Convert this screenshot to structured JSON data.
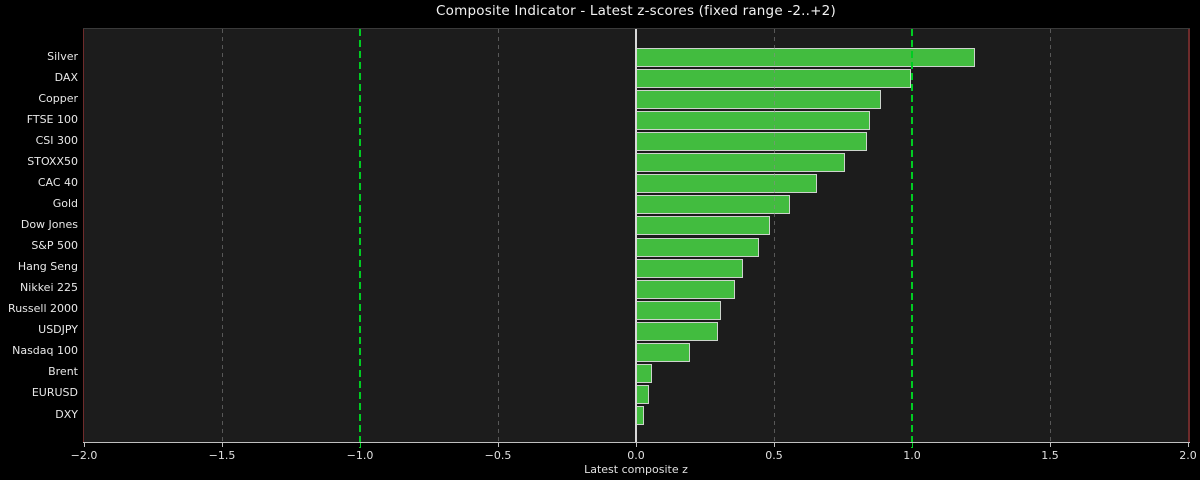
{
  "chart_data": {
    "type": "bar",
    "orientation": "horizontal",
    "title": "Composite Indicator - Latest z-scores (fixed range -2..+2)",
    "xlabel": "Latest composite z",
    "categories": [
      "Silver",
      "DAX",
      "Copper",
      "FTSE 100",
      "CSI 300",
      "STOXX50",
      "CAC 40",
      "Gold",
      "Dow Jones",
      "S&P 500",
      "Hang Seng",
      "Nikkei 225",
      "Russell 2000",
      "USDJPY",
      "Nasdaq 100",
      "Brent",
      "EURUSD",
      "DXY"
    ],
    "values": [
      1.22,
      0.99,
      0.88,
      0.84,
      0.83,
      0.75,
      0.65,
      0.55,
      0.48,
      0.44,
      0.38,
      0.35,
      0.3,
      0.29,
      0.19,
      0.05,
      0.04,
      0.02
    ],
    "xlim": [
      -2,
      2
    ],
    "xticks": [
      -2.0,
      -1.5,
      -1.0,
      -0.5,
      0.0,
      0.5,
      1.0,
      1.5,
      2.0
    ],
    "xtick_labels": [
      "−2.0",
      "−1.5",
      "−1.0",
      "−0.5",
      "0.0",
      "0.5",
      "1.0",
      "1.5",
      "2.0"
    ],
    "grid": true,
    "legend": false,
    "reference_lines": [
      {
        "x": -1.0,
        "style": "dashed",
        "color": "#00cc22"
      },
      {
        "x": 0.0,
        "style": "solid",
        "color": "#d9d9d9"
      },
      {
        "x": 1.0,
        "style": "dashed",
        "color": "#00cc22"
      }
    ],
    "colors": {
      "figure_bg": "#000000",
      "axes_bg": "#1c1c1c",
      "bar_fill": "#42bc3f",
      "bar_edge": "#ccd3cc",
      "grid": "#8a8a8a",
      "zero_line": "#d9d9d9",
      "band_line": "#00cc22",
      "spine_side": "#6e2b2b",
      "spine_top": "#3a3a3a",
      "spine_bottom": "#c0c0c0",
      "text": "#e8e8e8"
    }
  }
}
